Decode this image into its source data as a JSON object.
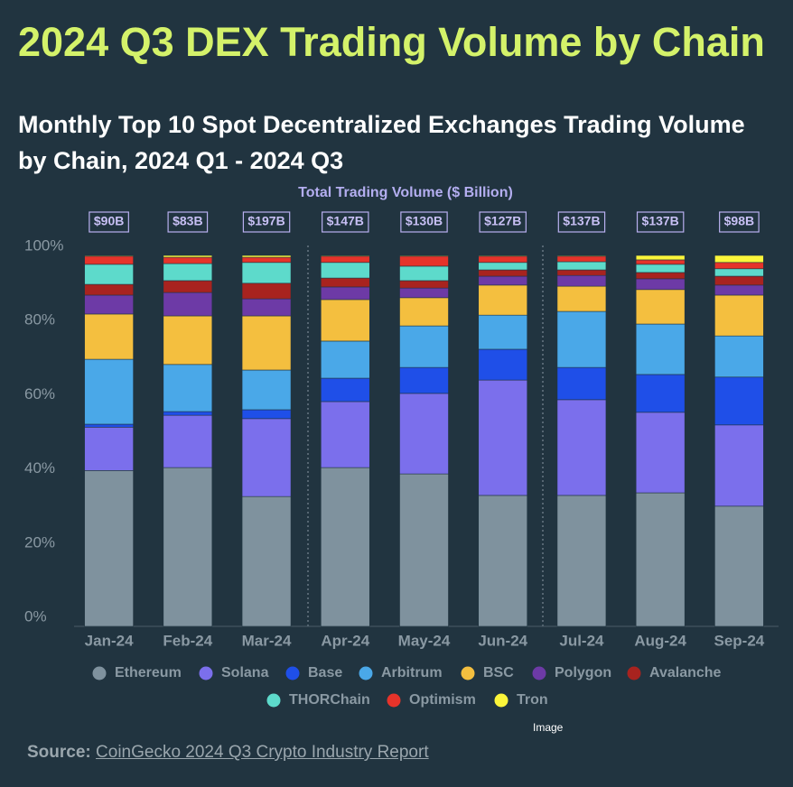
{
  "chart_data": {
    "type": "stacked_bar_100",
    "title": "2024 Q3 DEX Trading Volume by Chain",
    "subtitle": "Monthly Top 10 Spot Decentralized Exchanges Trading Volume by Chain, 2024 Q1 - 2024 Q3",
    "annotation": "Total Trading Volume ($ Billion)",
    "categories": [
      "Jan-24",
      "Feb-24",
      "Mar-24",
      "Apr-24",
      "May-24",
      "Jun-24",
      "Jul-24",
      "Aug-24",
      "Sep-24"
    ],
    "totals": {
      "values": [
        90,
        83,
        197,
        147,
        130,
        127,
        137,
        137,
        98
      ],
      "value_labels": [
        "$90B",
        "$83B",
        "$197B",
        "$147B",
        "$130B",
        "$127B",
        "$137B",
        "$137B",
        "$98B"
      ]
    },
    "ylim": [
      0,
      100
    ],
    "yticks": [
      {
        "value": 0,
        "label": "0%"
      },
      {
        "value": 20,
        "label": "20%"
      },
      {
        "value": 40,
        "label": "40%"
      },
      {
        "value": 60,
        "label": "60%"
      },
      {
        "value": 80,
        "label": "80%"
      },
      {
        "value": 100,
        "label": "100%"
      }
    ],
    "grid": false,
    "legend": "bottom",
    "series": [
      {
        "name": "Ethereum",
        "color": "#7f929e",
        "values": [
          42,
          42.8,
          35,
          42.8,
          41.1,
          35.3,
          35.3,
          36,
          32.4
        ]
      },
      {
        "name": "Solana",
        "color": "#7b6fec",
        "values": [
          11.7,
          14.1,
          21,
          17.8,
          21.7,
          31.1,
          25.8,
          21.7,
          21.9
        ]
      },
      {
        "name": "Base",
        "color": "#1f4fe8",
        "values": [
          0.8,
          1,
          2.4,
          6.3,
          7,
          8.3,
          8.7,
          10.2,
          12.9
        ]
      },
      {
        "name": "Arbitrum",
        "color": "#4aa8e8",
        "values": [
          17.5,
          12.7,
          10.7,
          10,
          11.2,
          9.2,
          15.1,
          13.6,
          11.1
        ]
      },
      {
        "name": "BSC",
        "color": "#f4bf3f",
        "values": [
          12.2,
          13.1,
          14.6,
          11.2,
          7.6,
          8.1,
          6.8,
          9.3,
          11
        ]
      },
      {
        "name": "Polygon",
        "color": "#6d3aa6",
        "values": [
          5.1,
          6.3,
          4.6,
          3.4,
          2.6,
          2.4,
          2.9,
          2.9,
          2.7
        ]
      },
      {
        "name": "Avalanche",
        "color": "#a8231f",
        "values": [
          2.9,
          3.2,
          4.2,
          2.4,
          2,
          1.7,
          1.5,
          1.7,
          2.4
        ]
      },
      {
        "name": "THORChain",
        "color": "#5ddacb",
        "values": [
          5.4,
          4.6,
          5.6,
          4.2,
          3.9,
          2,
          2.2,
          2.2,
          2
        ]
      },
      {
        "name": "Optimism",
        "color": "#e6332a",
        "values": [
          2.2,
          1.7,
          1.4,
          1.7,
          2.7,
          1.7,
          1.5,
          1.2,
          1.7
        ]
      },
      {
        "name": "Tron",
        "color": "#fbf53a",
        "values": [
          0.2,
          0.5,
          0.5,
          0.2,
          0.2,
          0.2,
          0.2,
          1.2,
          1.9
        ]
      }
    ]
  },
  "source": {
    "label": "Source:",
    "text": "CoinGecko 2024 Q3 Crypto Industry Report"
  },
  "image_alt": "Image"
}
